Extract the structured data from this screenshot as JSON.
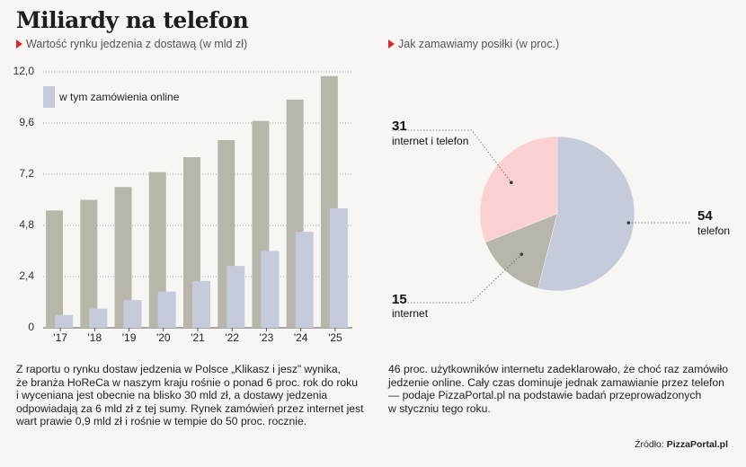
{
  "title": "Miliardy na telefon",
  "left_subtitle": "Wartość rynku jedzenia z dostawą (w mld zł)",
  "right_subtitle": "Jak zamawiamy posiłki (w proc.)",
  "left_text": [
    "Z raportu o rynku dostaw jedzenia w Polsce „Klikasz i jesz” wynika,",
    "że branża HoReCa w naszym kraju rośnie o ponad 6 proc. rok do roku",
    "i wyceniana jest obecnie na blisko 30 mld zł, a dostawy jedzenia",
    "odpowiadają za 6 mld zł z tej sumy. Rynek zamówień przez internet jest",
    "wart prawie 0,9 mld zł i rośnie w tempie do 50 proc. rocznie."
  ],
  "right_text": [
    "46 proc. użytkowników internetu zadeklarowało, że choć raz zamówiło",
    "jedzenie online. Cały czas dominuje jednak zamawianie przez telefon",
    "— podaje PizzaPortal.pl na podstawie badań przeprowadzonych",
    "w styczniu tego roku."
  ],
  "source_label": "Źródło:",
  "source_value": "PizzaPortal.pl",
  "colors": {
    "total_bar": "#b8b6ab",
    "online_bar": "#c5cbdb",
    "pie_telefon": "#c5cbdb",
    "pie_internet": "#b8b6ab",
    "pie_internet_telefon": "#fbd0d2",
    "accent": "#d7282d"
  },
  "chart_data": [
    {
      "type": "bar",
      "title": "Wartość rynku jedzenia z dostawą (w mld zł)",
      "categories": [
        "'17",
        "'18",
        "'19",
        "'20",
        "'21",
        "'22",
        "'23",
        "'24",
        "'25"
      ],
      "series": [
        {
          "name": "Wartość rynku",
          "values": [
            5.5,
            6.0,
            6.6,
            7.3,
            8.0,
            8.8,
            9.7,
            10.7,
            11.8
          ]
        },
        {
          "name": "w tym zamówienia online",
          "values": [
            0.6,
            0.9,
            1.3,
            1.7,
            2.2,
            2.9,
            3.6,
            4.5,
            5.6
          ]
        }
      ],
      "legend": "w tym zamówienia online",
      "yticks": [
        "0",
        "2,4",
        "4,8",
        "7,2",
        "9,6",
        "12,0"
      ],
      "ytick_values": [
        0,
        2.4,
        4.8,
        7.2,
        9.6,
        12.0
      ],
      "ylim": [
        0,
        12.0
      ],
      "xlabel": "",
      "ylabel": ""
    },
    {
      "type": "pie",
      "title": "Jak zamawiamy posiłki (w proc.)",
      "slices": [
        {
          "label": "telefon",
          "value": 54
        },
        {
          "label": "internet",
          "value": 15
        },
        {
          "label": "internet i telefon",
          "value": 31
        }
      ]
    }
  ]
}
